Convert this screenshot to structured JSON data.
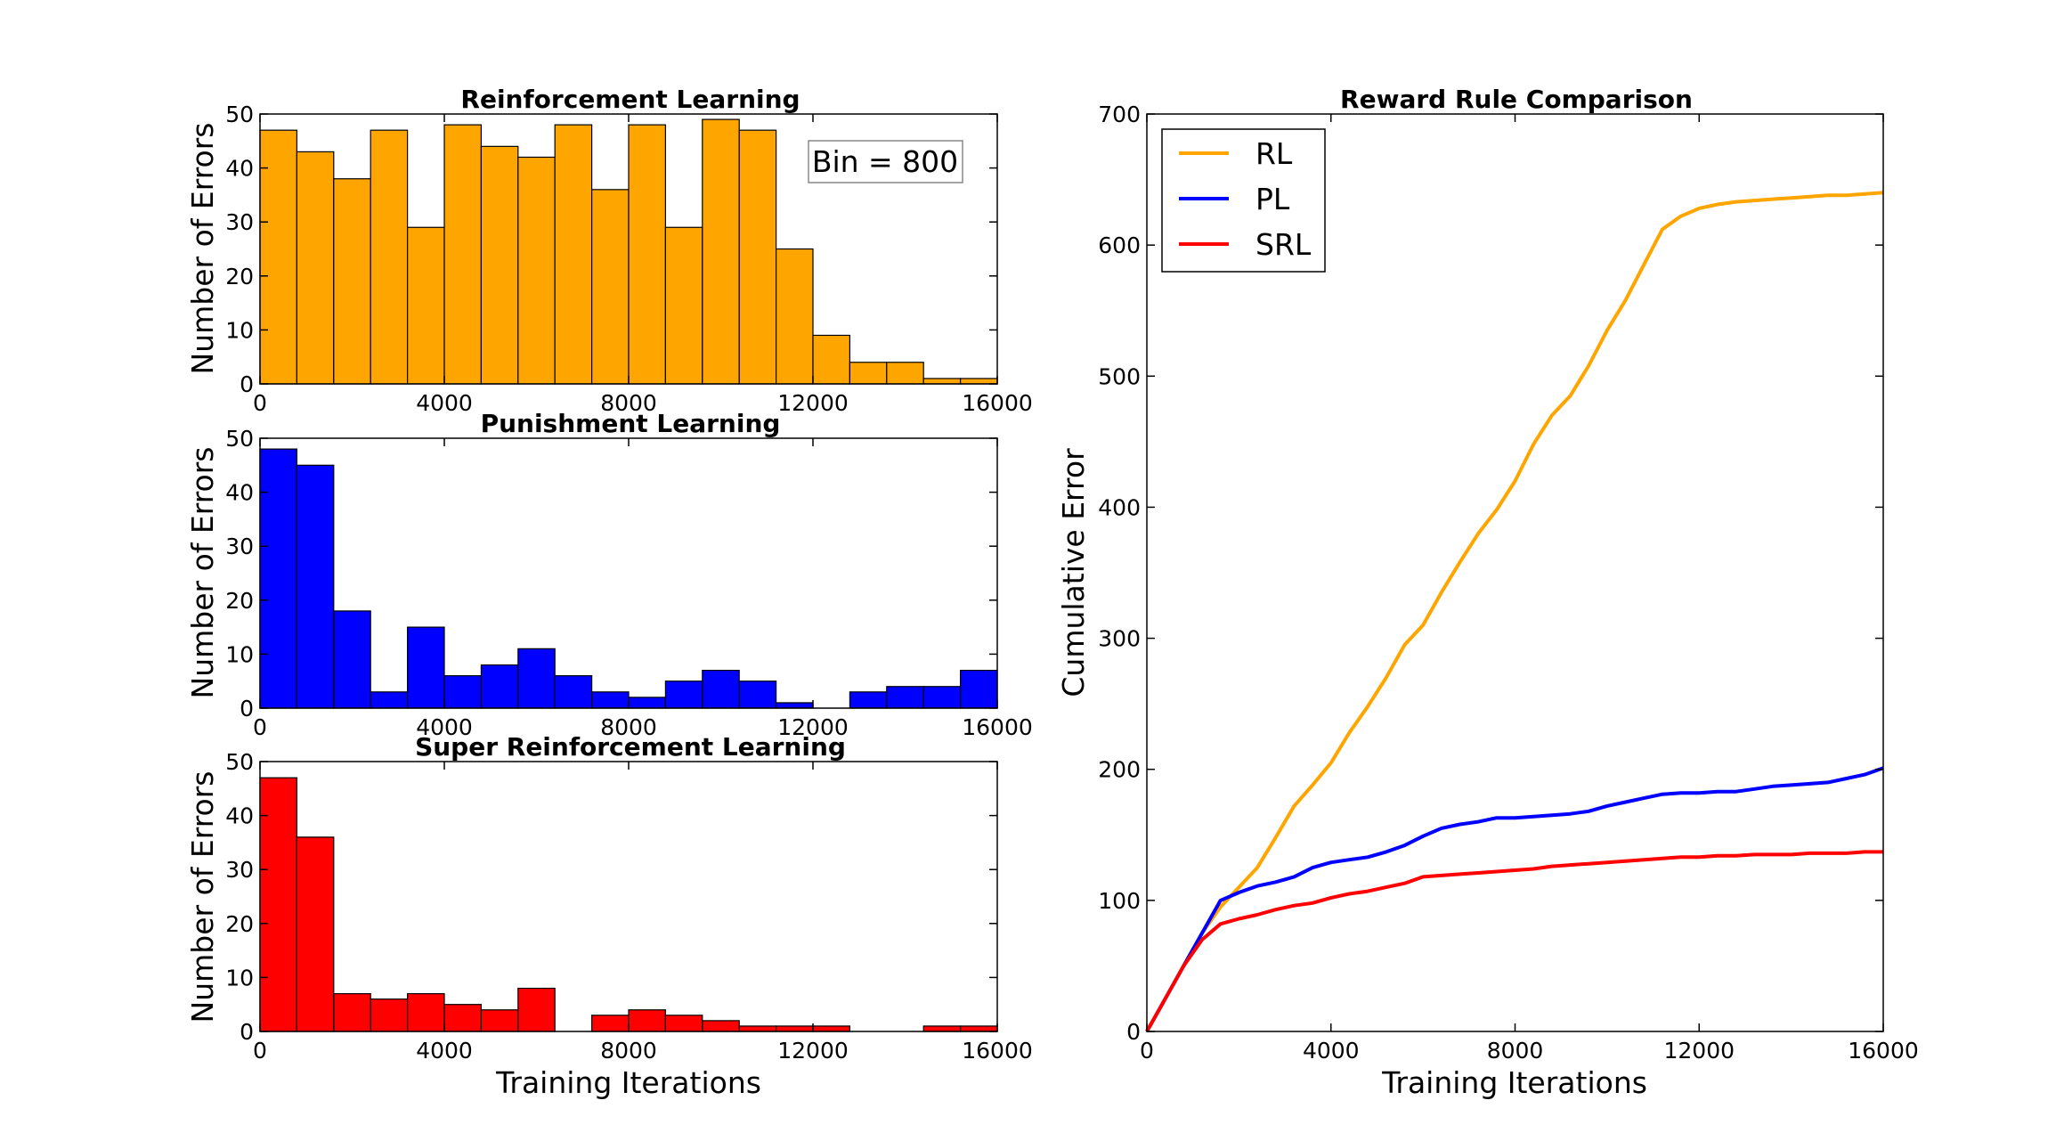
{
  "chart_data": [
    {
      "type": "bar",
      "title": "Reinforcement Learning",
      "ylabel": "Number of Errors",
      "xlabel": "",
      "annotation": "Bin = 800",
      "color": "#ffa500",
      "bin_width": 800,
      "xlim": [
        0,
        16000
      ],
      "ylim": [
        0,
        50
      ],
      "xticks": [
        0,
        4000,
        8000,
        12000,
        16000
      ],
      "yticks": [
        0,
        10,
        20,
        30,
        40,
        50
      ],
      "bin_starts": [
        0,
        800,
        1600,
        2400,
        3200,
        4000,
        4800,
        5600,
        6400,
        7200,
        8000,
        8800,
        9600,
        10400,
        11200,
        12000,
        12800,
        13600,
        14400,
        15200
      ],
      "values": [
        47,
        43,
        38,
        47,
        29,
        48,
        44,
        42,
        48,
        36,
        48,
        29,
        49,
        47,
        25,
        9,
        4,
        4,
        1,
        1
      ]
    },
    {
      "type": "bar",
      "title": "Punishment Learning",
      "ylabel": "Number of Errors",
      "xlabel": "",
      "color": "#0000ff",
      "bin_width": 800,
      "xlim": [
        0,
        16000
      ],
      "ylim": [
        0,
        50
      ],
      "xticks": [
        0,
        4000,
        8000,
        12000,
        16000
      ],
      "yticks": [
        0,
        10,
        20,
        30,
        40,
        50
      ],
      "bin_starts": [
        0,
        800,
        1600,
        2400,
        3200,
        4000,
        4800,
        5600,
        6400,
        7200,
        8000,
        8800,
        9600,
        10400,
        11200,
        12000,
        12800,
        13600,
        14400,
        15200
      ],
      "values": [
        48,
        45,
        18,
        3,
        15,
        6,
        8,
        11,
        6,
        3,
        2,
        5,
        7,
        5,
        1,
        0,
        3,
        4,
        4,
        7
      ]
    },
    {
      "type": "bar",
      "title": "Super Reinforcement Learning",
      "ylabel": "Number of Errors",
      "xlabel": "Training Iterations",
      "color": "#ff0000",
      "bin_width": 800,
      "xlim": [
        0,
        16000
      ],
      "ylim": [
        0,
        50
      ],
      "xticks": [
        0,
        4000,
        8000,
        12000,
        16000
      ],
      "yticks": [
        0,
        10,
        20,
        30,
        40,
        50
      ],
      "bin_starts": [
        0,
        800,
        1600,
        2400,
        3200,
        4000,
        4800,
        5600,
        6400,
        7200,
        8000,
        8800,
        9600,
        10400,
        11200,
        12000,
        12800,
        13600,
        14400,
        15200
      ],
      "values": [
        47,
        36,
        7,
        6,
        7,
        5,
        4,
        8,
        0,
        3,
        4,
        3,
        2,
        1,
        1,
        1,
        0,
        0,
        1,
        1
      ]
    },
    {
      "type": "line",
      "title": "Reward Rule Comparison",
      "xlabel": "Training Iterations",
      "ylabel": "Cumulative Error",
      "xlim": [
        0,
        16000
      ],
      "ylim": [
        0,
        700
      ],
      "xticks": [
        0,
        4000,
        8000,
        12000,
        16000
      ],
      "yticks": [
        0,
        100,
        200,
        300,
        400,
        500,
        600,
        700
      ],
      "legend_position": "top-left",
      "series": [
        {
          "name": "RL",
          "color": "#ffa500",
          "x": [
            0,
            400,
            800,
            1200,
            1600,
            2000,
            2400,
            2800,
            3200,
            3600,
            4000,
            4400,
            4800,
            5200,
            5600,
            6000,
            6400,
            6800,
            7200,
            7600,
            8000,
            8400,
            8800,
            9200,
            9600,
            10000,
            10400,
            10800,
            11200,
            11600,
            12000,
            12400,
            12800,
            13200,
            13600,
            14000,
            14400,
            14800,
            15200,
            15600,
            16000
          ],
          "y": [
            0,
            25,
            50,
            75,
            95,
            110,
            125,
            148,
            172,
            188,
            205,
            228,
            248,
            270,
            295,
            310,
            335,
            358,
            380,
            398,
            420,
            448,
            470,
            485,
            508,
            535,
            558,
            585,
            612,
            622,
            628,
            631,
            633,
            634,
            635,
            636,
            637,
            638,
            638,
            639,
            640
          ]
        },
        {
          "name": "PL",
          "color": "#0000ff",
          "x": [
            0,
            400,
            800,
            1200,
            1600,
            2000,
            2400,
            2800,
            3200,
            3600,
            4000,
            4400,
            4800,
            5200,
            5600,
            6000,
            6400,
            6800,
            7200,
            7600,
            8000,
            8400,
            8800,
            9200,
            9600,
            10000,
            10400,
            10800,
            11200,
            11600,
            12000,
            12400,
            12800,
            13200,
            13600,
            14000,
            14400,
            14800,
            15200,
            15600,
            16000
          ],
          "y": [
            0,
            25,
            50,
            75,
            100,
            106,
            111,
            114,
            118,
            125,
            129,
            131,
            133,
            137,
            142,
            149,
            155,
            158,
            160,
            163,
            163,
            164,
            165,
            166,
            168,
            172,
            175,
            178,
            181,
            182,
            182,
            183,
            183,
            185,
            187,
            188,
            189,
            190,
            193,
            196,
            201
          ]
        },
        {
          "name": "SRL",
          "color": "#ff0000",
          "x": [
            0,
            400,
            800,
            1200,
            1600,
            2000,
            2400,
            2800,
            3200,
            3600,
            4000,
            4400,
            4800,
            5200,
            5600,
            6000,
            6400,
            6800,
            7200,
            7600,
            8000,
            8400,
            8800,
            9200,
            9600,
            10000,
            10400,
            10800,
            11200,
            11600,
            12000,
            12400,
            12800,
            13200,
            13600,
            14000,
            14400,
            14800,
            15200,
            15600,
            16000
          ],
          "y": [
            0,
            25,
            50,
            70,
            82,
            86,
            89,
            93,
            96,
            98,
            102,
            105,
            107,
            110,
            113,
            118,
            119,
            120,
            121,
            122,
            123,
            124,
            126,
            127,
            128,
            129,
            130,
            131,
            132,
            133,
            133,
            134,
            134,
            135,
            135,
            135,
            136,
            136,
            136,
            137,
            137
          ]
        }
      ]
    }
  ]
}
